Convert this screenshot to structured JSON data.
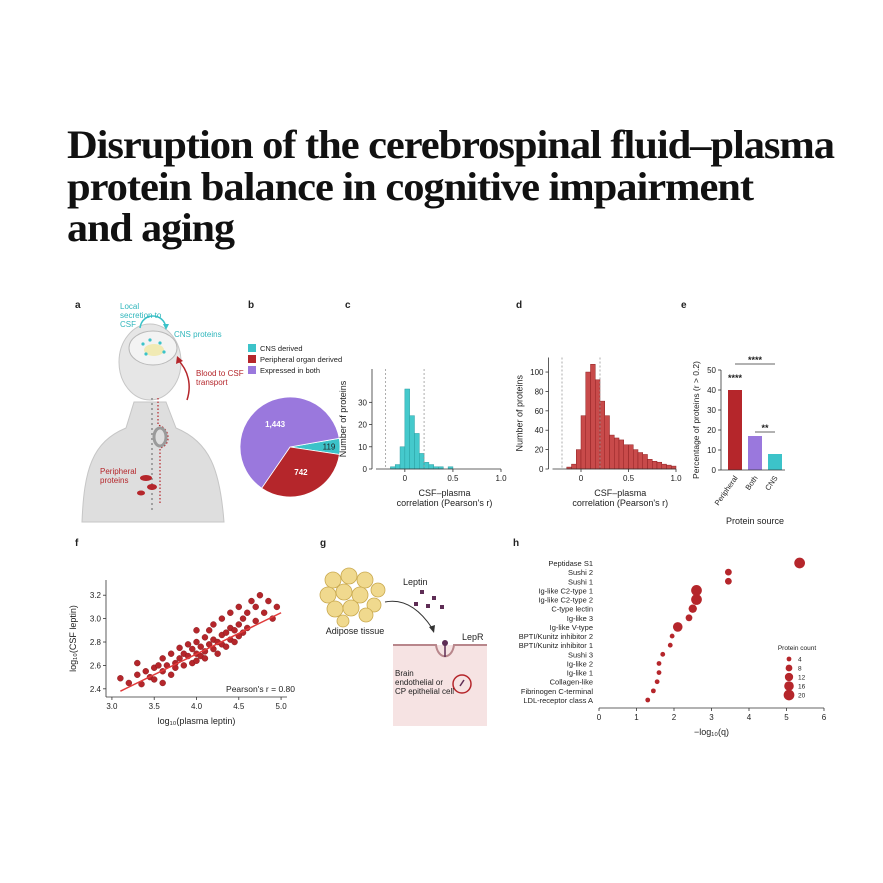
{
  "title_lines": [
    "Disruption of the cerebrospinal fluid–plasma",
    "protein balance in cognitive impairment",
    "and aging"
  ],
  "panels": {
    "a": {
      "label": "a",
      "local_secretion": [
        "Local",
        "secretion to",
        "CSF"
      ],
      "cns_proteins": "CNS proteins",
      "blood_to_csf": [
        "Blood to CSF",
        "transport"
      ],
      "peripheral_proteins": [
        "Peripheral",
        "proteins"
      ]
    },
    "g": {
      "label": "g",
      "adipose": "Adipose tissue",
      "leptin": "Leptin",
      "lepr": "LepR",
      "cell": [
        "Brain",
        "endothelial or",
        "CP epithelial cell"
      ]
    }
  },
  "chart_data": [
    {
      "type": "pie",
      "label": "b",
      "categories": [
        "CNS derived",
        "Peripheral organ derived",
        "Expressed in both"
      ],
      "values": [
        119,
        742,
        1443
      ],
      "value_labels": [
        "119",
        "742",
        "1,443"
      ],
      "colors": [
        "#3cc3c9",
        "#b5262b",
        "#9a78dd"
      ]
    },
    {
      "type": "histogram",
      "label": "c",
      "bins": [
        -0.15,
        -0.1,
        -0.05,
        0,
        0.05,
        0.1,
        0.15,
        0.2,
        0.25,
        0.3,
        0.35,
        0.4,
        0.45,
        0.5
      ],
      "values": [
        1,
        2,
        10,
        36,
        24,
        16,
        7,
        3,
        2,
        1,
        1,
        0,
        1
      ],
      "color": "#45c9cc",
      "edgecolor": "#2a9fa3",
      "thresholds": [
        -0.2,
        0.2
      ],
      "xlim": [
        -0.3,
        1.0
      ],
      "xticks": [
        0,
        0.5,
        {
          "value": 1,
          "label": "1.0"
        }
      ],
      "ylim": [
        0,
        45
      ],
      "yticks": [
        0,
        10,
        20,
        30
      ],
      "ylabel": "Number of proteins",
      "xlabel": [
        "CSF–plasma",
        "correlation (Pearson's r)"
      ]
    },
    {
      "type": "histogram",
      "label": "d",
      "bins": [
        -0.15,
        -0.1,
        -0.05,
        0,
        0.05,
        0.1,
        0.15,
        0.2,
        0.25,
        0.3,
        0.35,
        0.4,
        0.45,
        0.5,
        0.55,
        0.6,
        0.65,
        0.7,
        0.75,
        0.8,
        0.85,
        0.9,
        0.95,
        1.0
      ],
      "values": [
        2,
        5,
        20,
        55,
        100,
        108,
        92,
        70,
        55,
        35,
        32,
        30,
        25,
        25,
        20,
        17,
        15,
        10,
        8,
        7,
        5,
        4,
        3
      ],
      "color": "#c84a4a",
      "edgecolor": "#8f2022",
      "thresholds": [
        -0.2,
        0.2
      ],
      "xlim": [
        -0.3,
        1.0
      ],
      "xticks": [
        0,
        0.5,
        {
          "value": 1,
          "label": "1.0"
        }
      ],
      "ylim": [
        0,
        115
      ],
      "yticks": [
        0,
        20,
        40,
        60,
        80,
        100
      ],
      "ylabel": "Number of proteins",
      "xlabel": [
        "CSF–plasma",
        "correlation (Pearson's r)"
      ]
    },
    {
      "type": "bar",
      "label": "e",
      "categories": [
        "Peripheral",
        "Both",
        "CNS"
      ],
      "values": [
        40,
        17,
        8
      ],
      "colors": [
        "#b5262b",
        "#9a78dd",
        "#3cc3c9"
      ],
      "ylim": [
        0,
        50
      ],
      "yticks": [
        0,
        10,
        20,
        30,
        40,
        50
      ],
      "ylabel": "Percentage of proteins (r > 0.2)",
      "xlabel": "Protein source",
      "significance": [
        "****",
        "****",
        "**"
      ]
    },
    {
      "type": "scatter",
      "label": "f",
      "x": [
        3.1,
        3.2,
        3.3,
        3.35,
        3.4,
        3.45,
        3.5,
        3.5,
        3.55,
        3.6,
        3.6,
        3.65,
        3.7,
        3.7,
        3.75,
        3.75,
        3.8,
        3.8,
        3.85,
        3.85,
        3.9,
        3.9,
        3.95,
        3.95,
        4.0,
        4.0,
        4.0,
        4.05,
        4.05,
        4.1,
        4.1,
        4.1,
        4.15,
        4.15,
        4.2,
        4.2,
        4.2,
        4.25,
        4.25,
        4.3,
        4.3,
        4.3,
        4.35,
        4.35,
        4.4,
        4.4,
        4.4,
        4.45,
        4.45,
        4.5,
        4.5,
        4.55,
        4.55,
        4.6,
        4.6,
        4.65,
        4.7,
        4.7,
        4.75,
        4.8,
        4.85,
        4.9,
        4.95,
        3.3,
        3.6,
        4.0,
        4.5
      ],
      "values": [
        2.49,
        2.45,
        2.52,
        2.44,
        2.55,
        2.5,
        2.58,
        2.48,
        2.6,
        2.55,
        2.66,
        2.6,
        2.52,
        2.7,
        2.62,
        2.58,
        2.66,
        2.75,
        2.6,
        2.7,
        2.68,
        2.78,
        2.62,
        2.74,
        2.7,
        2.8,
        2.64,
        2.76,
        2.68,
        2.72,
        2.84,
        2.66,
        2.78,
        2.9,
        2.74,
        2.82,
        2.95,
        2.8,
        2.7,
        2.86,
        2.78,
        3.0,
        2.88,
        2.76,
        2.92,
        2.82,
        3.05,
        2.9,
        2.8,
        2.95,
        3.1,
        2.88,
        3.0,
        3.05,
        2.92,
        3.15,
        2.98,
        3.1,
        3.2,
        3.05,
        3.15,
        3.0,
        3.1,
        2.62,
        2.45,
        2.9,
        2.85
      ],
      "color": "#b5262b",
      "fit": {
        "x": [
          3.1,
          5.0
        ],
        "values": [
          2.38,
          3.05
        ]
      },
      "annotation": "Pearson's r = 0.80",
      "xlim": [
        2.93,
        5.07
      ],
      "xticks": [
        {
          "value": 3,
          "label": "3.0"
        },
        3.5,
        {
          "value": 4,
          "label": "4.0"
        },
        4.5,
        {
          "value": 5,
          "label": "5.0"
        }
      ],
      "ylim": [
        2.33,
        3.33
      ],
      "yticks": [
        2.4,
        2.6,
        2.8,
        {
          "value": 3,
          "label": "3.0"
        },
        3.2
      ],
      "xlabel": "log₁₀(plasma leptin)",
      "ylabel": "log₁₀(CSF leptin)"
    },
    {
      "type": "dot",
      "label": "h",
      "categories": [
        "Peptidase S1",
        "Sushi 2",
        "Sushi 1",
        "Ig-like C2-type 1",
        "Ig-like C2-type 2",
        "C-type lectin",
        "Ig-like 3",
        "Ig-like V-type",
        "BPTI/Kunitz inhibitor 2",
        "BPTI/Kunitz inhibitor 1",
        "Sushi 3",
        "Ig-like 2",
        "Ig-like 1",
        "Collagen-like",
        "Fibrinogen C-terminal",
        "LDL-receptor class A"
      ],
      "values": [
        5.35,
        3.45,
        3.45,
        2.6,
        2.6,
        2.5,
        2.4,
        2.1,
        1.95,
        1.9,
        1.7,
        1.6,
        1.6,
        1.55,
        1.45,
        1.3
      ],
      "sizes": [
        20,
        8,
        8,
        20,
        20,
        12,
        8,
        16,
        4,
        4,
        4,
        4,
        4,
        4,
        4,
        4
      ],
      "color": "#b5262b",
      "xlim": [
        0,
        6
      ],
      "xticks": [
        0,
        1,
        2,
        3,
        4,
        5,
        6
      ],
      "xlabel": "−log₁₀(q)",
      "size_legend_title": "Protein count",
      "size_legend": [
        4,
        8,
        12,
        16,
        20
      ]
    }
  ]
}
